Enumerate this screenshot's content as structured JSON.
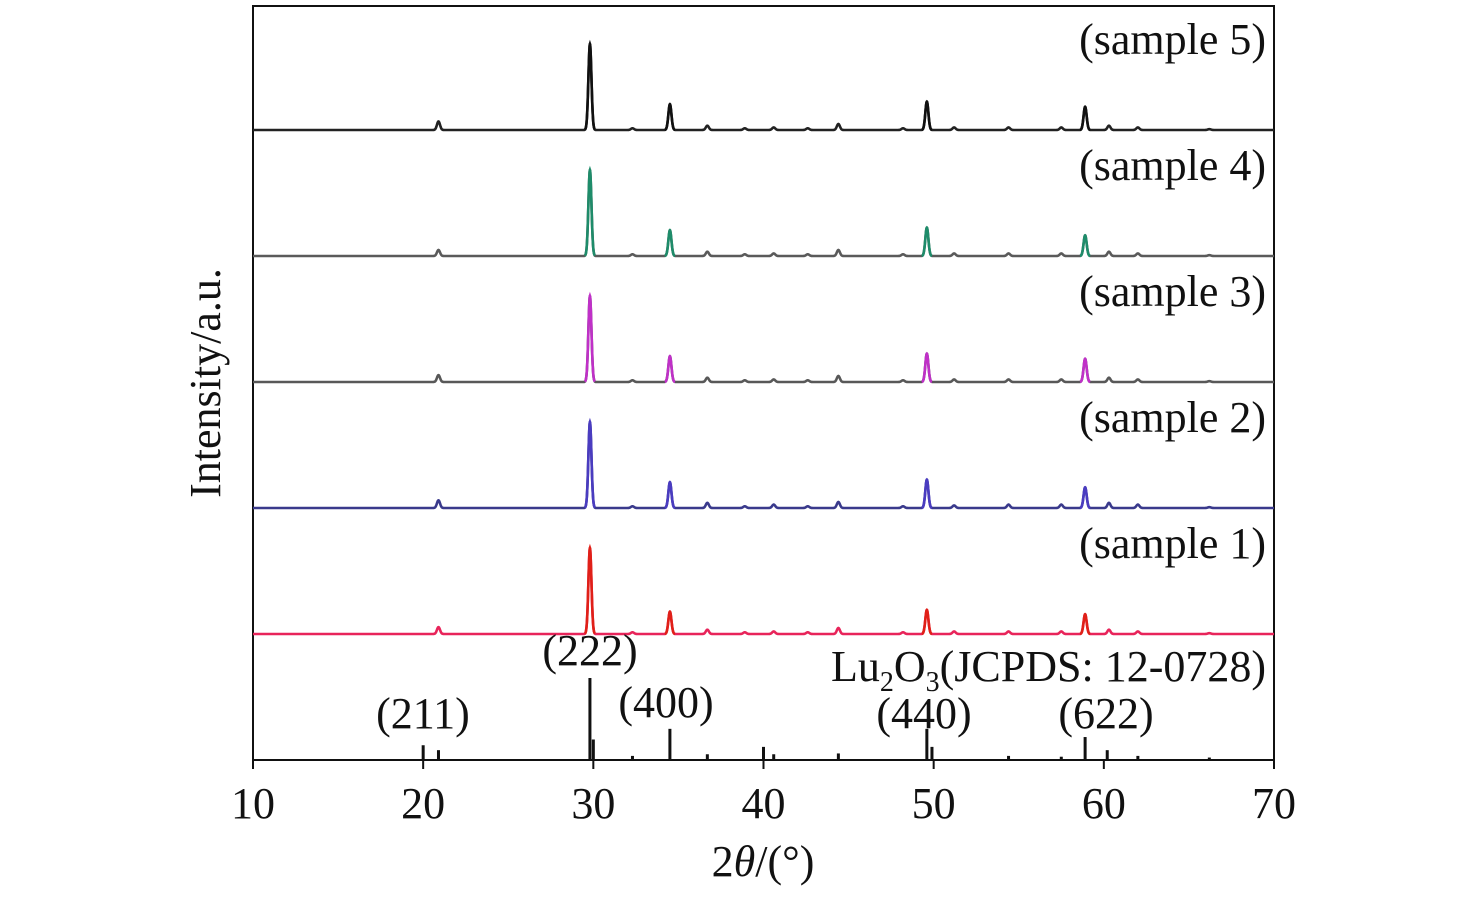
{
  "chart_data": {
    "type": "line",
    "title": "",
    "xlabel_prefix": "2",
    "xlabel_symbol": "θ",
    "xlabel_suffix": "/(°)",
    "ylabel": "Intensity/a.u.",
    "xlim": [
      10,
      70
    ],
    "xticks": [
      10,
      20,
      30,
      40,
      50,
      60,
      70
    ],
    "yticks_shown": false,
    "grid": false,
    "legend": "none",
    "reference": {
      "label_main": "Lu",
      "label_sub1": "2",
      "label_mid": "O",
      "label_sub2": "3",
      "label_tail": "(JCPDS: 12-0728)",
      "color": "#111111",
      "sticks": [
        {
          "x": 20.0,
          "h": 0.18
        },
        {
          "x": 20.9,
          "h": 0.12
        },
        {
          "x": 29.8,
          "h": 1.0
        },
        {
          "x": 30.0,
          "h": 0.25
        },
        {
          "x": 32.3,
          "h": 0.05
        },
        {
          "x": 34.5,
          "h": 0.38
        },
        {
          "x": 36.7,
          "h": 0.07
        },
        {
          "x": 40.0,
          "h": 0.16
        },
        {
          "x": 40.6,
          "h": 0.07
        },
        {
          "x": 44.4,
          "h": 0.08
        },
        {
          "x": 49.6,
          "h": 0.38
        },
        {
          "x": 49.9,
          "h": 0.16
        },
        {
          "x": 54.4,
          "h": 0.05
        },
        {
          "x": 57.5,
          "h": 0.04
        },
        {
          "x": 58.9,
          "h": 0.28
        },
        {
          "x": 60.2,
          "h": 0.12
        },
        {
          "x": 62.0,
          "h": 0.05
        },
        {
          "x": 66.2,
          "h": 0.03
        }
      ],
      "miller_indices": [
        {
          "label": "(211)",
          "x": 20.9
        },
        {
          "label": "(222)",
          "x": 29.8
        },
        {
          "label": "(400)",
          "x": 34.5
        },
        {
          "label": "(440)",
          "x": 49.6
        },
        {
          "label": "(622)",
          "x": 58.9
        }
      ]
    },
    "peak_positions": [
      20.9,
      29.8,
      32.3,
      34.5,
      36.7,
      38.9,
      40.6,
      42.6,
      44.4,
      48.2,
      49.6,
      51.2,
      54.4,
      57.5,
      58.9,
      60.3,
      62.0,
      66.2
    ],
    "series": [
      {
        "name": "(sample 1)",
        "color": "#e8245a",
        "peak_color": "#e02018",
        "intensities": [
          0.08,
          1.0,
          0.02,
          0.26,
          0.05,
          0.02,
          0.03,
          0.02,
          0.07,
          0.02,
          0.28,
          0.03,
          0.03,
          0.03,
          0.23,
          0.05,
          0.03,
          0.01
        ]
      },
      {
        "name": "(sample 2)",
        "color": "#3a3a8c",
        "peak_color": "#4a3cc0",
        "intensities": [
          0.09,
          1.0,
          0.02,
          0.3,
          0.06,
          0.02,
          0.04,
          0.02,
          0.07,
          0.02,
          0.33,
          0.03,
          0.04,
          0.04,
          0.24,
          0.06,
          0.04,
          0.01
        ]
      },
      {
        "name": "(sample 3)",
        "color": "#585858",
        "peak_color": "#c030c8",
        "intensities": [
          0.08,
          1.0,
          0.02,
          0.3,
          0.05,
          0.02,
          0.03,
          0.02,
          0.07,
          0.02,
          0.33,
          0.03,
          0.03,
          0.03,
          0.27,
          0.05,
          0.03,
          0.01
        ]
      },
      {
        "name": "(sample 4)",
        "color": "#5a5a5a",
        "peak_color": "#1e8c6a",
        "intensities": [
          0.07,
          1.0,
          0.02,
          0.3,
          0.05,
          0.02,
          0.03,
          0.02,
          0.07,
          0.02,
          0.33,
          0.03,
          0.03,
          0.03,
          0.24,
          0.05,
          0.03,
          0.01
        ]
      },
      {
        "name": "(sample 5)",
        "color": "#222222",
        "peak_color": "#111111",
        "intensities": [
          0.1,
          1.0,
          0.02,
          0.3,
          0.05,
          0.02,
          0.03,
          0.02,
          0.07,
          0.02,
          0.33,
          0.03,
          0.03,
          0.03,
          0.27,
          0.05,
          0.03,
          0.01
        ]
      }
    ]
  }
}
